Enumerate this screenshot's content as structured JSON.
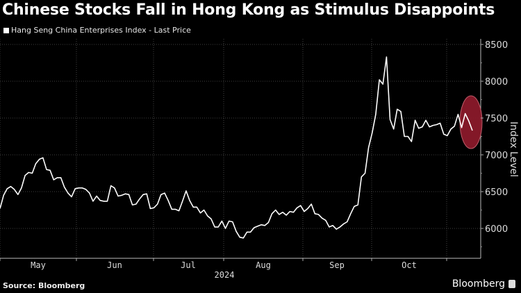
{
  "title": "Chinese Stocks Fall in Hong Kong as Stimulus Disappoints",
  "legend": {
    "label": "Hang Seng China Enterprises Index - Last Price",
    "color": "#ffffff"
  },
  "source": "Source: Bloomberg",
  "brand": "Bloomberg",
  "highlight_color": "#8b1a2b",
  "chart_data": {
    "type": "line",
    "title": "Chinese Stocks Fall in Hong Kong as Stimulus Disappoints",
    "xlabel": "2024",
    "ylabel": "Index Level",
    "ylim": [
      5700,
      8600
    ],
    "y_ticks": [
      6000,
      6500,
      7000,
      7500,
      8000,
      8500
    ],
    "x_ticks": [
      "May",
      "Jun",
      "Jul",
      "Aug",
      "Sep",
      "Oct"
    ],
    "x_year_label": "2024",
    "grid": true,
    "legend_position": "top-left",
    "annotation": "red ellipse highlighting late-October decline",
    "series": [
      {
        "name": "Hang Seng China Enterprises Index - Last Price",
        "x_approx_range": [
          "2024-04-22",
          "2024-10-29"
        ],
        "values": [
          6270,
          6450,
          6540,
          6570,
          6530,
          6460,
          6550,
          6720,
          6760,
          6750,
          6880,
          6940,
          6960,
          6800,
          6790,
          6660,
          6690,
          6690,
          6560,
          6480,
          6430,
          6540,
          6550,
          6550,
          6530,
          6480,
          6370,
          6440,
          6380,
          6370,
          6370,
          6580,
          6550,
          6440,
          6450,
          6470,
          6460,
          6320,
          6330,
          6400,
          6460,
          6470,
          6270,
          6280,
          6330,
          6460,
          6480,
          6380,
          6260,
          6260,
          6240,
          6370,
          6510,
          6380,
          6290,
          6290,
          6210,
          6250,
          6170,
          6130,
          6020,
          6020,
          6100,
          6000,
          6100,
          6090,
          5960,
          5880,
          5870,
          5950,
          5950,
          6010,
          6030,
          6050,
          6040,
          6080,
          6200,
          6250,
          6190,
          6220,
          6180,
          6230,
          6220,
          6280,
          6310,
          6230,
          6270,
          6330,
          6200,
          6190,
          6140,
          6110,
          6020,
          6040,
          5990,
          6020,
          6060,
          6090,
          6200,
          6300,
          6320,
          6700,
          6750,
          7100,
          7300,
          7550,
          8020,
          7960,
          8330,
          7480,
          7350,
          7620,
          7590,
          7250,
          7250,
          7180,
          7470,
          7360,
          7380,
          7470,
          7380,
          7400,
          7410,
          7430,
          7280,
          7260,
          7350,
          7390,
          7550,
          7370,
          7560,
          7460,
          7330
        ]
      }
    ]
  }
}
